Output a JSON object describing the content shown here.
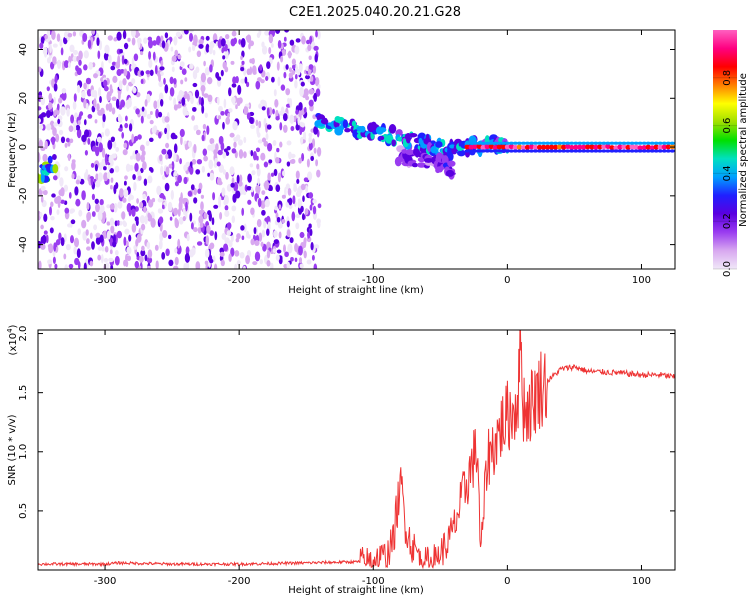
{
  "title": "C2E1.2025.040.20.21.G28",
  "chart_data": [
    {
      "type": "heatmap",
      "xlabel": "Height of straight line (km)",
      "ylabel": "Frequency (Hz)",
      "xlim": [
        -350,
        125
      ],
      "ylim": [
        -50,
        48
      ],
      "x_ticks": [
        -300,
        -200,
        -100,
        0,
        100
      ],
      "y_ticks": [
        -40,
        -20,
        0,
        20,
        40
      ],
      "colorbar": {
        "label": "Normalized spectral amplitude",
        "range": [
          0,
          1
        ],
        "ticks": [
          "0.0",
          "0.2",
          "0.4",
          "0.6",
          "0.8"
        ],
        "tick_values": [
          0,
          0.2,
          0.4,
          0.6,
          0.8
        ],
        "colors": [
          "#f0e8f8",
          "#d8a8f0",
          "#9a3cf0",
          "#5a00e0",
          "#2020ff",
          "#00a0ff",
          "#00e0c0",
          "#00e000",
          "#a0e000",
          "#ffff00",
          "#ff8000",
          "#ff0000",
          "#ff0080",
          "#ff60c0"
        ]
      },
      "regions": [
        {
          "name": "noise",
          "x_range": [
            -350,
            -140
          ],
          "y_range": [
            -50,
            48
          ],
          "amplitude": 0.1
        },
        {
          "name": "dispersed track",
          "x": [
            -140,
            -120,
            -100,
            -80,
            -60,
            -45,
            -30,
            -10,
            0
          ],
          "y": [
            10,
            8,
            6,
            4,
            1,
            -2,
            0,
            1,
            1
          ],
          "amplitude": 0.35
        },
        {
          "name": "lower branch",
          "x": [
            -80,
            -65,
            -50,
            -40
          ],
          "y": [
            -3,
            -5,
            -7,
            -10
          ],
          "amplitude": 0.2
        },
        {
          "name": "carrier line",
          "x": [
            -30,
            125
          ],
          "y": [
            0,
            0
          ],
          "amplitude": 0.9
        },
        {
          "name": "early blob",
          "x": [
            -348,
            -338
          ],
          "y": [
            -12,
            -6
          ],
          "amplitude": 0.45
        }
      ]
    },
    {
      "type": "line",
      "xlabel": "Height of straight line (km)",
      "ylabel": "SNR (10 * v/v)",
      "multiplier_label": "(x10",
      "multiplier_exp": "4",
      "multiplier_close": ")",
      "xlim": [
        -350,
        125
      ],
      "ylim": [
        0,
        2.03
      ],
      "x_ticks": [
        -300,
        -200,
        -100,
        0,
        100
      ],
      "y_ticks": [
        "0.5",
        "1.0",
        "1.5",
        "2.0"
      ],
      "y_tick_values": [
        0.5,
        1.0,
        1.5,
        2.0
      ],
      "color": "#ee3333",
      "x": [
        -350,
        -300,
        -290,
        -250,
        -200,
        -150,
        -110,
        -100,
        -90,
        -85,
        -82,
        -79,
        -76,
        -72,
        -65,
        -58,
        -52,
        -45,
        -40,
        -35,
        -30,
        -25,
        -22,
        -20,
        -15,
        -10,
        -5,
        0,
        5,
        8,
        10,
        12,
        15,
        20,
        25,
        30,
        40,
        50,
        60,
        80,
        100,
        115,
        125
      ],
      "y": [
        0.05,
        0.05,
        0.06,
        0.05,
        0.05,
        0.06,
        0.07,
        0.08,
        0.12,
        0.25,
        0.55,
        0.7,
        0.4,
        0.22,
        0.12,
        0.06,
        0.12,
        0.22,
        0.35,
        0.55,
        0.75,
        0.95,
        1.0,
        0.1,
        0.95,
        1.05,
        1.2,
        1.3,
        1.35,
        1.5,
        1.95,
        1.4,
        1.35,
        1.45,
        1.55,
        1.6,
        1.7,
        1.72,
        1.68,
        1.67,
        1.65,
        1.65,
        1.63
      ]
    }
  ]
}
